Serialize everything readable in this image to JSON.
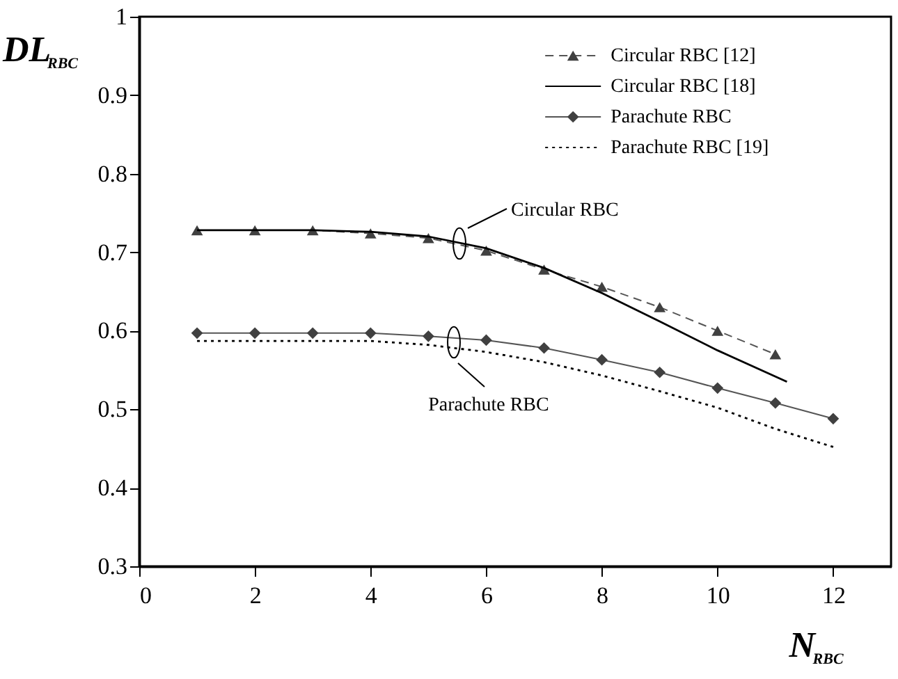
{
  "chart_data": {
    "type": "line",
    "xlabel": "N$_{RBC}$",
    "ylabel": "DL$_{RBC}$",
    "xlim": [
      0,
      13
    ],
    "xticks": [
      0,
      2,
      4,
      6,
      8,
      10,
      12
    ],
    "ylim": [
      0.3,
      1
    ],
    "yticks": [
      0.3,
      0.4,
      0.5,
      0.6,
      0.7,
      0.8,
      0.9,
      1
    ],
    "grid": false,
    "legend": "top right",
    "series": [
      {
        "name": "Circular RBC [12]",
        "color": "#404040",
        "marker": "triangle",
        "line_style": "dashed",
        "x": [
          1,
          2,
          3,
          4,
          5,
          6,
          7,
          8,
          9,
          10,
          11
        ],
        "values": [
          0.728,
          0.728,
          0.728,
          0.724,
          0.718,
          0.702,
          0.678,
          0.656,
          0.63,
          0.6,
          0.57
        ]
      },
      {
        "name": "Circular RBC [18]",
        "color": "#000000",
        "marker": "none",
        "line_style": "solid",
        "x": [
          1,
          2,
          3,
          4,
          5,
          6,
          7,
          8,
          9,
          10,
          11.2
        ],
        "values": [
          0.728,
          0.728,
          0.728,
          0.726,
          0.72,
          0.705,
          0.68,
          0.648,
          0.612,
          0.575,
          0.535
        ]
      },
      {
        "name": "Parachute RBC",
        "color": "#404040",
        "marker": "diamond",
        "line_style": "solid",
        "x": [
          1,
          2,
          3,
          4,
          5,
          6,
          7,
          8,
          9,
          10,
          11,
          12
        ],
        "values": [
          0.597,
          0.597,
          0.597,
          0.597,
          0.593,
          0.588,
          0.578,
          0.563,
          0.547,
          0.527,
          0.508,
          0.488
        ]
      },
      {
        "name": "Parachute RBC [19]",
        "color": "#000000",
        "marker": "none",
        "line_style": "dotted",
        "x": [
          1,
          2,
          3,
          4,
          5,
          6,
          7,
          8,
          9,
          10,
          11,
          12
        ],
        "values": [
          0.587,
          0.587,
          0.587,
          0.587,
          0.582,
          0.573,
          0.56,
          0.543,
          0.523,
          0.502,
          0.475,
          0.452
        ]
      }
    ],
    "annotations": [
      "Circular RBC",
      "Parachute RBC"
    ]
  }
}
